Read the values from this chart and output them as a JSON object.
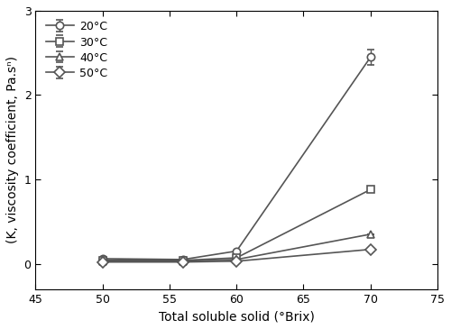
{
  "x_values": [
    50,
    56,
    60,
    70
  ],
  "series": [
    {
      "label": "20°C",
      "y": [
        0.06,
        0.05,
        0.15,
        2.45
      ],
      "yerr": [
        0.0,
        0.0,
        0.0,
        0.09
      ],
      "marker": "o",
      "color": "#555555"
    },
    {
      "label": "30°C",
      "y": [
        0.04,
        0.04,
        0.07,
        0.88
      ],
      "yerr": [
        0.0,
        0.0,
        0.0,
        0.0
      ],
      "marker": "s",
      "color": "#555555"
    },
    {
      "label": "40°C",
      "y": [
        0.03,
        0.03,
        0.05,
        0.35
      ],
      "yerr": [
        0.0,
        0.0,
        0.0,
        0.0
      ],
      "marker": "^",
      "color": "#555555"
    },
    {
      "label": "50°C",
      "y": [
        0.02,
        0.02,
        0.03,
        0.17
      ],
      "yerr": [
        0.0,
        0.0,
        0.0,
        0.0
      ],
      "marker": "D",
      "color": "#555555"
    }
  ],
  "xlim": [
    45,
    75
  ],
  "ylim": [
    -0.3,
    3.0
  ],
  "xticks": [
    45,
    50,
    55,
    60,
    65,
    70,
    75
  ],
  "yticks": [
    0,
    1,
    2,
    3
  ],
  "xlabel": "Total soluble solid (°Brix)",
  "ylabel": "(K, viscosity coefficient, Pa.sⁿ)",
  "background_color": "#ffffff",
  "linewidth": 1.2,
  "markersize": 6,
  "figsize": [
    5.0,
    3.65
  ],
  "dpi": 100
}
